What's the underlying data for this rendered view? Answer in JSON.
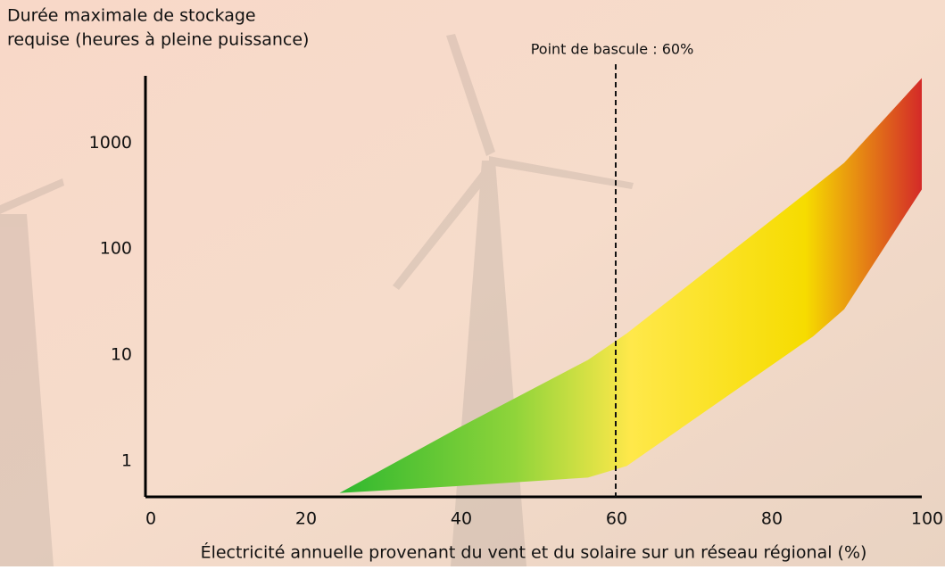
{
  "chart_data": {
    "type": "range-area",
    "ylabel": [
      "Durée maximale de stockage",
      "requise (heures à pleine puissance)"
    ],
    "xlabel": "Électricité annuelle provenant du vent et du solaire sur un réseau régional (%)",
    "annotation": "Point de bascule : 60%",
    "threshold": 60,
    "x": [
      25,
      40,
      57,
      62,
      86,
      90,
      100
    ],
    "high": [
      0.5,
      2,
      9,
      16,
      380,
      650,
      4100
    ],
    "low": [
      0.5,
      0.58,
      0.7,
      0.9,
      15,
      27,
      365
    ],
    "xlim": [
      0,
      100
    ],
    "xticks": [
      0,
      20,
      40,
      60,
      80,
      100
    ],
    "ylim": [
      0.46,
      4300
    ],
    "yticks": [
      1,
      10,
      100,
      1000
    ],
    "yscale": "log",
    "colors": [
      "#2fb82f",
      "#8fd43a",
      "#ffe84a",
      "#f6dc00",
      "#d42a28"
    ]
  }
}
